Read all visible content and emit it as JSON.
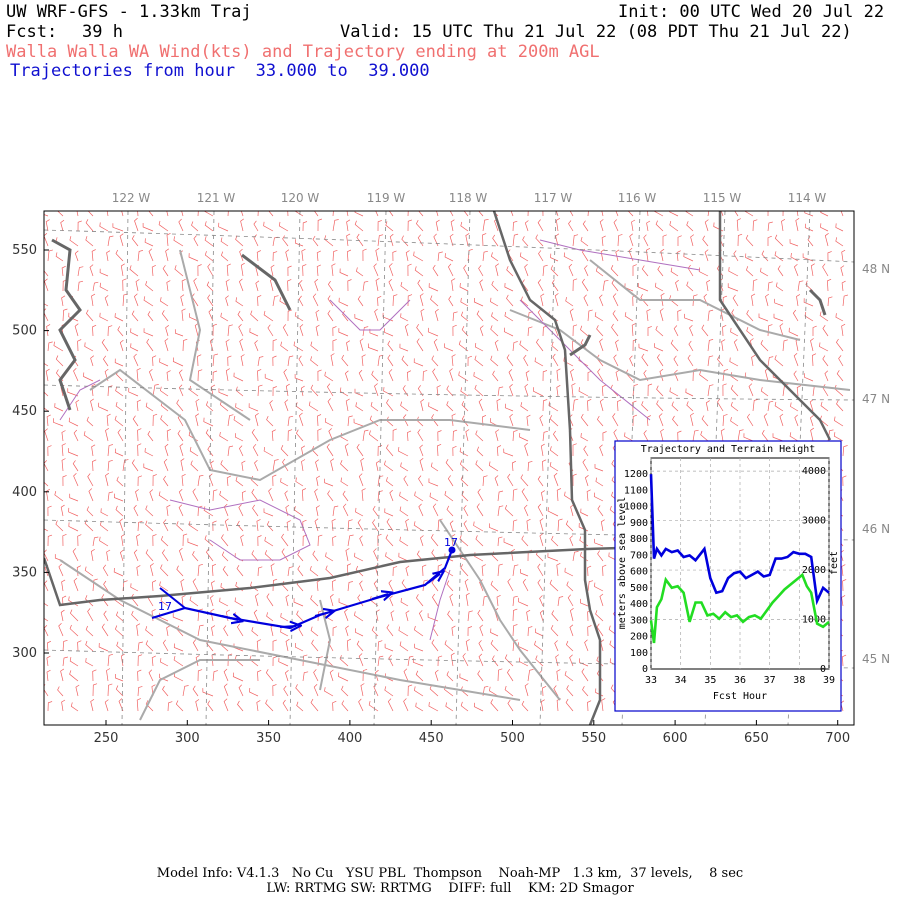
{
  "header": {
    "title": "UW WRF-GFS - 1.33km Traj",
    "init": "Init: 00 UTC Wed 20 Jul 22",
    "fcst_label": "Fcst:",
    "fcst_value": "39 h",
    "valid": "Valid: 15 UTC Thu 21 Jul 22 (08 PDT Thu 21 Jul 22)",
    "subtitle": "Walla Walla WA Wind(kts) and Trajectory ending at 200m AGL",
    "traj_range": "Trajectories from hour  33.000 to  39.000"
  },
  "map": {
    "lon_labels": [
      "122 W",
      "121 W",
      "120 W",
      "119 W",
      "118 W",
      "117 W",
      "116 W",
      "115 W",
      "114 W"
    ],
    "lat_labels": [
      "48 N",
      "47 N",
      "46 N",
      "45 N"
    ],
    "x_ticks": [
      "250",
      "300",
      "350",
      "400",
      "450",
      "500",
      "550",
      "600",
      "650",
      "700"
    ],
    "y_ticks": [
      "550",
      "500",
      "450",
      "400",
      "350",
      "300"
    ],
    "trajectory_start_label": "17",
    "trajectory_end_label": "17",
    "colors": {
      "trajectory": "#0000dd",
      "barbs": "#f06060",
      "roads": "#aaaaaa",
      "rivers": "#b070c0",
      "coast": "#666666"
    }
  },
  "inset": {
    "title": "Trajectory and Terrain Height",
    "left_axis_label": "meters above sea level",
    "right_axis_label": "feet",
    "x_axis_label": "Fcst Hour",
    "left_ticks": [
      "1200",
      "1100",
      "1000",
      "900",
      "800",
      "700",
      "600",
      "500",
      "400",
      "300",
      "200",
      "100",
      "0"
    ],
    "right_ticks": [
      "4000",
      "3000",
      "2000",
      "1000",
      "0"
    ],
    "x_ticks": [
      "33",
      "34",
      "35",
      "36",
      "37",
      "38",
      "39"
    ]
  },
  "chart_data": {
    "type": "line",
    "title": "Trajectory and Terrain Height",
    "xlabel": "Fcst Hour",
    "ylabel": "meters above sea level",
    "xlim": [
      33,
      39
    ],
    "ylim": [
      0,
      1300
    ],
    "grid": true,
    "series": [
      {
        "color": "#0000dd",
        "x": [
          33.0,
          33.1,
          33.2,
          33.35,
          33.5,
          33.7,
          33.9,
          34.1,
          34.3,
          34.5,
          34.8,
          35.0,
          35.2,
          35.4,
          35.6,
          35.8,
          36.0,
          36.2,
          36.4,
          36.6,
          36.8,
          37.0,
          37.2,
          37.4,
          37.6,
          37.8,
          38.0,
          38.2,
          38.4,
          38.6,
          38.8,
          39.0
        ],
        "y": [
          1200,
          680,
          740,
          700,
          740,
          720,
          730,
          690,
          700,
          670,
          740,
          560,
          470,
          480,
          560,
          590,
          600,
          560,
          580,
          600,
          570,
          580,
          680,
          680,
          690,
          720,
          710,
          710,
          690,
          420,
          500,
          470
        ]
      },
      {
        "color": "#22dd22",
        "x": [
          33.0,
          33.1,
          33.2,
          33.35,
          33.5,
          33.7,
          33.9,
          34.1,
          34.3,
          34.5,
          34.7,
          34.9,
          35.1,
          35.3,
          35.5,
          35.7,
          35.9,
          36.1,
          36.3,
          36.5,
          36.7,
          36.9,
          37.1,
          37.3,
          37.5,
          37.7,
          37.9,
          38.1,
          38.25,
          38.4,
          38.6,
          38.8,
          39.0
        ],
        "y": [
          300,
          160,
          380,
          430,
          550,
          500,
          510,
          470,
          290,
          410,
          410,
          330,
          340,
          310,
          350,
          320,
          330,
          290,
          320,
          330,
          310,
          360,
          410,
          450,
          490,
          520,
          550,
          580,
          510,
          470,
          280,
          260,
          290
        ]
      }
    ]
  },
  "footer": {
    "line1": "Model Info: V4.1.3   No Cu   YSU PBL  Thompson    Noah-MP   1.3 km,  37 levels,    8 sec",
    "line2": "LW: RRTMG SW: RRTMG    DIFF: full    KM: 2D Smagor"
  }
}
